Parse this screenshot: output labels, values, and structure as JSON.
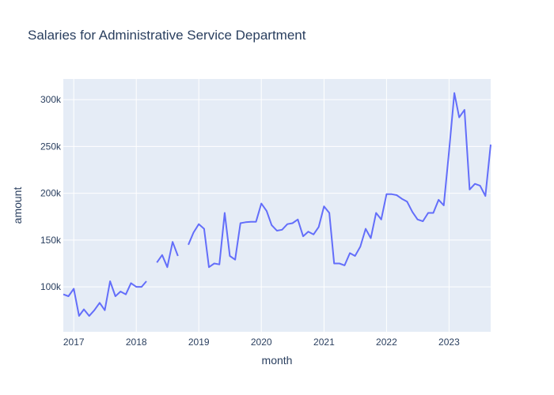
{
  "chart_data": {
    "type": "line",
    "title": "Salaries for Administrative Service Department",
    "xlabel": "month",
    "ylabel": "amount",
    "xlim": [
      "2016-11-01",
      "2023-09-01"
    ],
    "ylim": [
      52000,
      322000
    ],
    "grid": true,
    "x_ticks": [
      "2017-01-01",
      "2018-01-01",
      "2019-01-01",
      "2020-01-01",
      "2021-01-01",
      "2022-01-01",
      "2023-01-01"
    ],
    "x_tick_labels": [
      "2017",
      "2018",
      "2019",
      "2020",
      "2021",
      "2022",
      "2023"
    ],
    "y_ticks": [
      100000,
      150000,
      200000,
      250000,
      300000
    ],
    "y_tick_labels": [
      "100k",
      "150k",
      "200k",
      "250k",
      "300k"
    ],
    "colors": {
      "line": "#636efa",
      "plot_bg": "#e5ecf6",
      "grid": "#ffffff",
      "text": "#2a3f5f"
    },
    "series": [
      {
        "x": [
          "2016-11-01",
          "2016-12-01",
          "2017-01-01",
          "2017-02-01",
          "2017-03-01",
          "2017-04-01",
          "2017-05-01",
          "2017-06-01",
          "2017-07-01",
          "2017-08-01",
          "2017-09-01",
          "2017-10-01",
          "2017-11-01",
          "2017-12-01",
          "2018-01-01",
          "2018-02-01",
          "2018-03-01",
          "2018-04-01",
          "2018-05-01",
          "2018-06-01",
          "2018-07-01",
          "2018-08-01",
          "2018-09-01",
          "2018-10-01",
          "2018-11-01",
          "2018-12-01",
          "2019-01-01",
          "2019-02-01",
          "2019-03-01",
          "2019-04-01",
          "2019-05-01",
          "2019-06-01",
          "2019-07-01",
          "2019-08-01",
          "2019-09-01",
          "2019-10-01",
          "2019-11-01",
          "2019-12-01",
          "2020-01-01",
          "2020-02-01",
          "2020-03-01",
          "2020-04-01",
          "2020-05-01",
          "2020-06-01",
          "2020-07-01",
          "2020-08-01",
          "2020-09-01",
          "2020-10-01",
          "2020-11-01",
          "2020-12-01",
          "2021-01-01",
          "2021-02-01",
          "2021-03-01",
          "2021-04-01",
          "2021-05-01",
          "2021-06-01",
          "2021-07-01",
          "2021-08-01",
          "2021-09-01",
          "2021-10-01",
          "2021-11-01",
          "2021-12-01",
          "2022-01-01",
          "2022-02-01",
          "2022-03-01",
          "2022-04-01",
          "2022-05-01",
          "2022-06-01",
          "2022-07-01",
          "2022-08-01",
          "2022-09-01",
          "2022-10-01",
          "2022-11-01",
          "2022-12-01",
          "2023-01-01",
          "2023-02-01",
          "2023-03-01",
          "2023-04-01",
          "2023-05-01",
          "2023-06-01",
          "2023-07-01",
          "2023-08-01",
          "2023-09-01"
        ],
        "y": [
          92000,
          90000,
          98000,
          69000,
          76000,
          69000,
          75000,
          83000,
          75000,
          106000,
          90000,
          95000,
          92000,
          104000,
          100000,
          100000,
          106000,
          null,
          126000,
          134000,
          121000,
          148000,
          133000,
          null,
          145000,
          158000,
          167000,
          162000,
          121000,
          125000,
          124000,
          179000,
          133000,
          129000,
          168000,
          169000,
          169500,
          169500,
          189000,
          181000,
          166000,
          160000,
          161000,
          167000,
          168000,
          172000,
          154000,
          159000,
          156000,
          164000,
          186000,
          179000,
          125000,
          125000,
          123000,
          136000,
          133000,
          143000,
          162000,
          152000,
          179000,
          172000,
          199000,
          199000,
          198000,
          194000,
          191000,
          180000,
          172000,
          170000,
          179000,
          179000,
          193000,
          187000,
          245000,
          307000,
          281000,
          289000,
          204000,
          210000,
          208000,
          197000,
          252000
        ]
      }
    ]
  }
}
